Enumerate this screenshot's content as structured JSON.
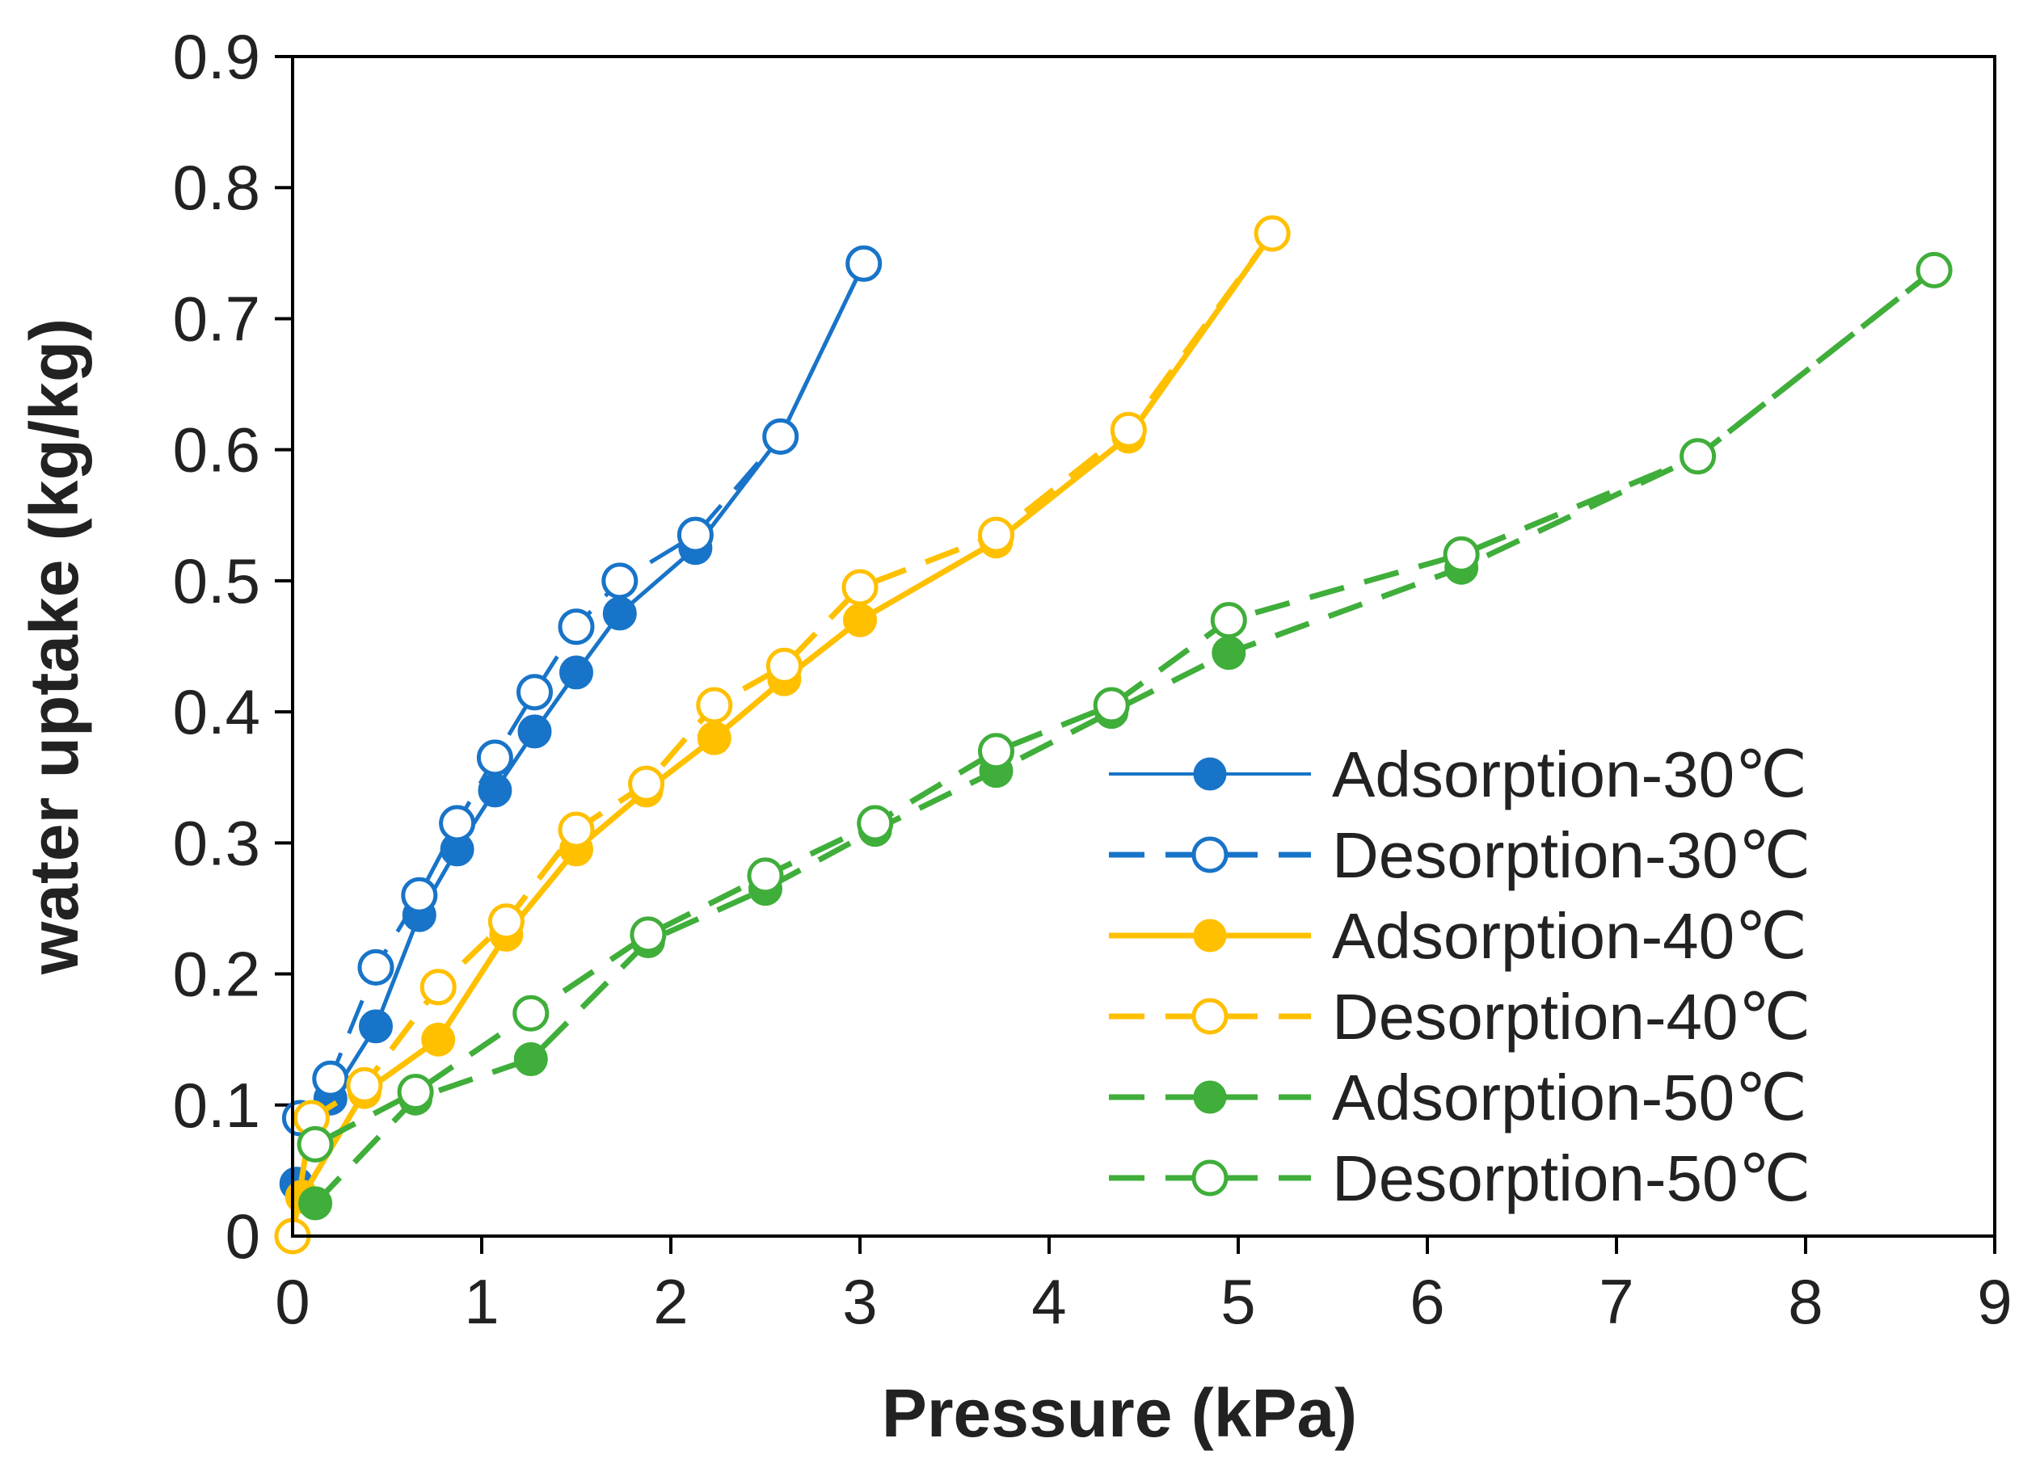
{
  "chart_data": {
    "type": "scatter",
    "title": "",
    "xlabel": "Pressure (kPa)",
    "ylabel": "water uptake (kg/kg)",
    "xlim": [
      0,
      9
    ],
    "ylim": [
      0,
      0.9
    ],
    "x_ticks": [
      "0",
      "1",
      "2",
      "3",
      "4",
      "5",
      "6",
      "7",
      "8",
      "9"
    ],
    "y_ticks": [
      "0",
      "0.1",
      "0.2",
      "0.3",
      "0.4",
      "0.5",
      "0.6",
      "0.7",
      "0.8",
      "0.9"
    ],
    "grid": false,
    "legend_position": "lower-right",
    "series": [
      {
        "name": "Adsorption-30℃",
        "color": "#1874c8",
        "line": "solid",
        "marker": "filled",
        "points": [
          [
            0.02,
            0.04
          ],
          [
            0.2,
            0.105
          ],
          [
            0.44,
            0.16
          ],
          [
            0.67,
            0.245
          ],
          [
            0.87,
            0.295
          ],
          [
            1.07,
            0.34
          ],
          [
            1.28,
            0.385
          ],
          [
            1.5,
            0.43
          ],
          [
            1.73,
            0.475
          ],
          [
            2.13,
            0.525
          ],
          [
            2.58,
            0.61
          ],
          [
            3.02,
            0.742
          ]
        ]
      },
      {
        "name": "Desorption-30℃",
        "color": "#1874c8",
        "line": "dashed",
        "marker": "hollow",
        "points": [
          [
            3.02,
            0.742
          ],
          [
            2.58,
            0.61
          ],
          [
            2.13,
            0.535
          ],
          [
            1.73,
            0.5
          ],
          [
            1.5,
            0.465
          ],
          [
            1.28,
            0.415
          ],
          [
            1.07,
            0.365
          ],
          [
            0.87,
            0.315
          ],
          [
            0.67,
            0.26
          ],
          [
            0.44,
            0.205
          ],
          [
            0.2,
            0.12
          ],
          [
            0.04,
            0.09
          ]
        ]
      },
      {
        "name": "Adsorption-40℃",
        "color": "#ffc000",
        "line": "solid",
        "marker": "filled",
        "points": [
          [
            0.05,
            0.03
          ],
          [
            0.38,
            0.11
          ],
          [
            0.77,
            0.15
          ],
          [
            1.13,
            0.23
          ],
          [
            1.5,
            0.295
          ],
          [
            1.87,
            0.34
          ],
          [
            2.23,
            0.38
          ],
          [
            2.6,
            0.425
          ],
          [
            3.0,
            0.47
          ],
          [
            3.72,
            0.53
          ],
          [
            4.42,
            0.61
          ],
          [
            5.18,
            0.765
          ]
        ]
      },
      {
        "name": "Desorption-40℃",
        "color": "#ffc000",
        "line": "dashed",
        "marker": "hollow",
        "points": [
          [
            5.18,
            0.765
          ],
          [
            4.42,
            0.615
          ],
          [
            3.72,
            0.535
          ],
          [
            3.0,
            0.495
          ],
          [
            2.6,
            0.435
          ],
          [
            2.23,
            0.405
          ],
          [
            1.87,
            0.345
          ],
          [
            1.5,
            0.31
          ],
          [
            1.13,
            0.24
          ],
          [
            0.77,
            0.19
          ],
          [
            0.38,
            0.115
          ],
          [
            0.1,
            0.09
          ],
          [
            0.0,
            0.0
          ]
        ]
      },
      {
        "name": "Adsorption-50℃",
        "color": "#3fae3a",
        "line": "dashed",
        "marker": "filled",
        "points": [
          [
            0.12,
            0.025
          ],
          [
            0.65,
            0.105
          ],
          [
            1.26,
            0.135
          ],
          [
            1.88,
            0.225
          ],
          [
            2.5,
            0.265
          ],
          [
            3.08,
            0.31
          ],
          [
            3.72,
            0.355
          ],
          [
            4.33,
            0.4
          ],
          [
            4.95,
            0.445
          ],
          [
            6.18,
            0.51
          ],
          [
            7.43,
            0.595
          ],
          [
            8.68,
            0.737
          ]
        ]
      },
      {
        "name": "Desorption-50℃",
        "color": "#3fae3a",
        "line": "dashed",
        "marker": "hollow",
        "points": [
          [
            8.68,
            0.737
          ],
          [
            7.43,
            0.595
          ],
          [
            6.18,
            0.52
          ],
          [
            4.95,
            0.47
          ],
          [
            4.33,
            0.405
          ],
          [
            3.72,
            0.37
          ],
          [
            3.08,
            0.315
          ],
          [
            2.5,
            0.275
          ],
          [
            1.88,
            0.23
          ],
          [
            1.26,
            0.17
          ],
          [
            0.65,
            0.11
          ],
          [
            0.12,
            0.07
          ]
        ]
      }
    ]
  }
}
